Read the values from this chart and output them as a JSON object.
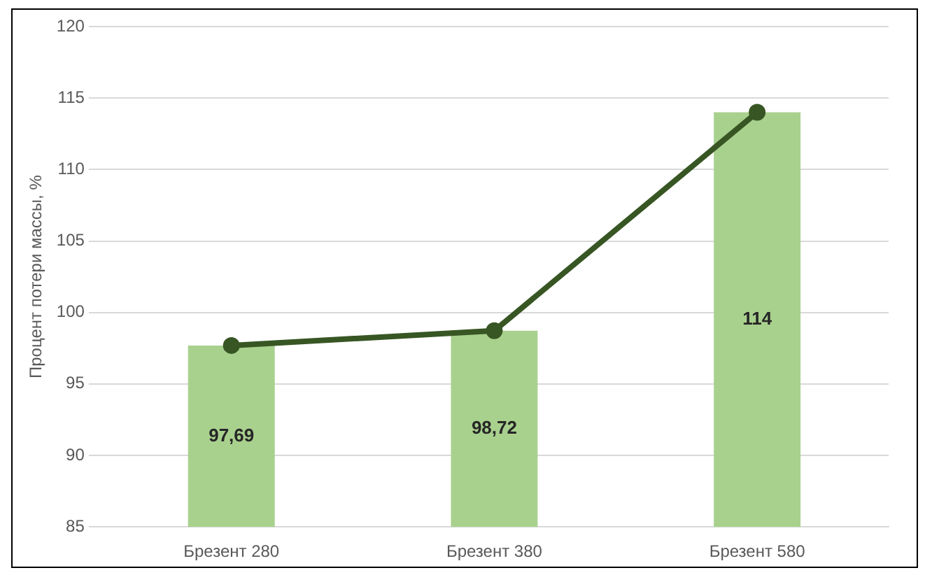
{
  "chart_data": {
    "type": "bar",
    "ylabel": "Процент потери массы, %",
    "categories": [
      "Брезент 280",
      "Брезент 380",
      "Брезент 580"
    ],
    "series": [
      {
        "color": "#a9d18e",
        "values": [
          97.69,
          98.72,
          114
        ],
        "value_labels": [
          "97,69",
          "98,72",
          "114"
        ]
      },
      {
        "type": "line",
        "color": "#375623",
        "values": [
          97.69,
          98.72,
          114
        ],
        "marker": "circle"
      }
    ],
    "ylim": [
      85,
      120
    ],
    "yticks": [
      85,
      90,
      95,
      100,
      105,
      110,
      115,
      120
    ],
    "grid": "y"
  }
}
